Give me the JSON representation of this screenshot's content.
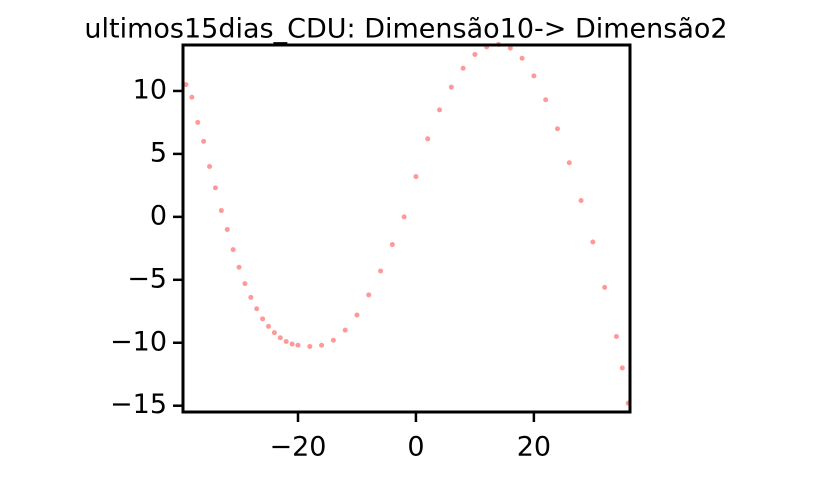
{
  "chart_data": {
    "type": "scatter",
    "title": "ultimos15dias_CDU: Dimensão10-> Dimensão2",
    "color": "#ff0000",
    "x": [
      -39,
      -38,
      -37,
      -36,
      -35,
      -34,
      -33,
      -32,
      -31,
      -30,
      -29,
      -28,
      -27,
      -26,
      -25,
      -24,
      -23,
      -22,
      -21,
      -20,
      -18,
      -16,
      -14,
      -12,
      -10,
      -8,
      -6,
      -4,
      -2,
      0,
      2,
      4,
      6,
      8,
      10,
      12,
      14,
      16,
      18,
      20,
      22,
      24,
      26,
      28,
      30,
      32,
      34,
      35,
      36
    ],
    "values": [
      10.5,
      9.5,
      7.5,
      6,
      4,
      2.3,
      0.5,
      -1,
      -2.6,
      -4,
      -5.3,
      -6.4,
      -7.3,
      -8.1,
      -8.7,
      -9.2,
      -9.6,
      -9.9,
      -10.1,
      -10.2,
      -10.3,
      -10.2,
      -9.8,
      -9,
      -7.8,
      -6.2,
      -4.3,
      -2.2,
      0,
      3.2,
      6.2,
      8.5,
      10.3,
      11.8,
      12.9,
      13.5,
      13.7,
      13.4,
      12.6,
      11.2,
      9.3,
      7,
      4.3,
      1.3,
      -2,
      -5.6,
      -9.5,
      -12,
      -14.8
    ],
    "xlim": [
      -39.5,
      36.3
    ],
    "ylim": [
      -15.5,
      13.65
    ],
    "xticks": [
      {
        "value": -20,
        "label": "−20"
      },
      0,
      20
    ],
    "yticks": [
      {
        "value": -15,
        "label": "−15"
      },
      {
        "value": -10,
        "label": "−10"
      },
      {
        "value": -5,
        "label": "−5"
      },
      0,
      5,
      10
    ]
  }
}
